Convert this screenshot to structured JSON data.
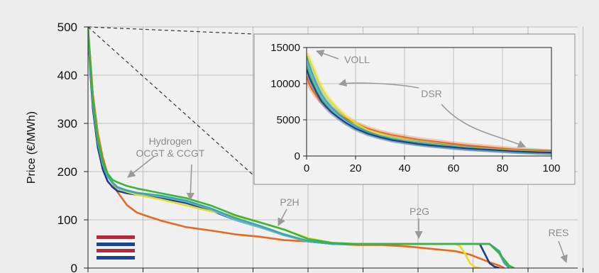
{
  "chart_data": [
    {
      "type": "line",
      "chart": "main",
      "ylabel": "Price (€/MWh)",
      "xlabel": "",
      "ylim": [
        0,
        500
      ],
      "xlim": [
        0,
        100
      ],
      "yticks": [
        0,
        100,
        200,
        300,
        400,
        500
      ],
      "ytick_labels": [
        "0",
        "100",
        "200",
        "300",
        "400",
        "500"
      ],
      "grid": true,
      "annotations": [
        {
          "id": "hydrogen",
          "lines": [
            "Hydrogen",
            "OCGT & CCGT"
          ],
          "x": 14,
          "y": 200
        },
        {
          "id": "p2h",
          "lines": [
            "P2H"
          ],
          "x": 37,
          "y": 95
        },
        {
          "id": "p2g",
          "lines": [
            "P2G"
          ],
          "x": 60,
          "y": 45
        },
        {
          "id": "res",
          "lines": [
            "RES"
          ],
          "x": 88,
          "y": 3
        }
      ],
      "legend": {
        "type": "flags",
        "placement": "bottom-left",
        "flags": [
          {
            "name": "",
            "colors": [
              "#b8283a",
              "#ffffff",
              "#1d4494"
            ]
          },
          {
            "name": "",
            "colors": [
              "#b8283a",
              "#ffffff",
              "#1d4494"
            ]
          }
        ]
      },
      "series": [
        {
          "color": "#e8681e",
          "x": [
            0,
            0.5,
            1,
            2,
            3,
            4,
            5,
            6,
            8,
            10,
            12,
            15,
            20,
            25,
            30,
            35,
            40,
            45,
            50,
            55,
            60,
            65,
            70,
            75,
            78,
            80,
            82,
            84,
            85
          ],
          "y": [
            500,
            430,
            360,
            280,
            230,
            195,
            175,
            158,
            130,
            115,
            108,
            98,
            85,
            78,
            70,
            65,
            58,
            55,
            50,
            48,
            48,
            45,
            40,
            35,
            28,
            20,
            12,
            5,
            0
          ]
        },
        {
          "color": "#1d3e8f",
          "x": [
            0,
            0.5,
            1,
            2,
            3,
            4,
            5,
            6,
            8,
            10,
            15,
            20,
            25,
            30,
            35,
            40,
            45,
            50,
            55,
            60,
            65,
            70,
            75,
            80,
            81,
            82,
            83,
            84
          ],
          "y": [
            500,
            400,
            330,
            250,
            205,
            180,
            168,
            160,
            155,
            152,
            145,
            135,
            120,
            100,
            85,
            70,
            55,
            50,
            50,
            50,
            50,
            50,
            50,
            50,
            30,
            10,
            3,
            0
          ]
        },
        {
          "color": "#e6dc28",
          "x": [
            0,
            0.5,
            1,
            2,
            3,
            4,
            5,
            6,
            8,
            10,
            15,
            20,
            25,
            30,
            35,
            40,
            45,
            50,
            55,
            60,
            65,
            70,
            75,
            76,
            77,
            78,
            79,
            80
          ],
          "y": [
            500,
            420,
            350,
            270,
            220,
            190,
            175,
            165,
            158,
            152,
            142,
            130,
            118,
            108,
            95,
            80,
            62,
            52,
            50,
            50,
            50,
            50,
            50,
            45,
            30,
            10,
            2,
            0
          ]
        },
        {
          "color": "#6fb0d9",
          "x": [
            0,
            0.5,
            1,
            2,
            3,
            4,
            5,
            6,
            8,
            10,
            15,
            20,
            25,
            30,
            35,
            40,
            45,
            50,
            55,
            60,
            65,
            70,
            75,
            80,
            82,
            84,
            85,
            86
          ],
          "y": [
            500,
            410,
            340,
            260,
            215,
            190,
            176,
            166,
            160,
            155,
            148,
            138,
            122,
            100,
            85,
            68,
            55,
            50,
            50,
            50,
            50,
            50,
            50,
            50,
            50,
            30,
            10,
            0
          ]
        },
        {
          "color": "#3aa9a3",
          "x": [
            0,
            0.5,
            1,
            2,
            3,
            4,
            5,
            6,
            8,
            10,
            15,
            20,
            25,
            30,
            35,
            40,
            45,
            50,
            55,
            60,
            65,
            70,
            75,
            80,
            82,
            84,
            85,
            86
          ],
          "y": [
            500,
            415,
            345,
            262,
            216,
            192,
            178,
            168,
            161,
            156,
            150,
            140,
            124,
            104,
            88,
            70,
            56,
            50,
            50,
            50,
            50,
            50,
            50,
            50,
            50,
            35,
            12,
            0
          ]
        },
        {
          "color": "#3bb43c",
          "x": [
            0,
            0.5,
            1,
            2,
            3,
            4,
            5,
            6,
            8,
            10,
            15,
            20,
            25,
            30,
            35,
            40,
            45,
            50,
            55,
            60,
            65,
            70,
            75,
            80,
            82,
            84,
            86,
            87
          ],
          "y": [
            500,
            420,
            350,
            268,
            222,
            196,
            183,
            178,
            170,
            165,
            155,
            145,
            130,
            110,
            95,
            80,
            60,
            52,
            50,
            50,
            50,
            50,
            50,
            50,
            50,
            30,
            5,
            0
          ]
        }
      ]
    },
    {
      "type": "line",
      "chart": "inset",
      "xlim": [
        0,
        100
      ],
      "ylim": [
        0,
        15000
      ],
      "xticks": [
        0,
        20,
        40,
        60,
        80,
        100
      ],
      "xtick_labels": [
        "0",
        "20",
        "40",
        "60",
        "80",
        "100"
      ],
      "yticks": [
        0,
        5000,
        10000,
        15000
      ],
      "ytick_labels": [
        "0",
        "5000",
        "10000",
        "15000"
      ],
      "grid": true,
      "annotations": [
        {
          "id": "voll",
          "lines": [
            "VOLL"
          ],
          "x": 12,
          "y": 13500
        },
        {
          "id": "dsr",
          "lines": [
            "DSR"
          ],
          "x": 42,
          "y": 8500
        }
      ],
      "series": [
        {
          "color": "#e8681e",
          "x": [
            0,
            1,
            2,
            4,
            6,
            8,
            10,
            13,
            16,
            20,
            25,
            30,
            35,
            40,
            45,
            50,
            55,
            60,
            65,
            70,
            75,
            80,
            85,
            90,
            95,
            100
          ],
          "y": [
            11000,
            10000,
            9300,
            8300,
            7600,
            7000,
            6500,
            5800,
            5200,
            4500,
            3800,
            3300,
            2900,
            2600,
            2300,
            2100,
            1900,
            1700,
            1500,
            1350,
            1200,
            1050,
            900,
            800,
            700,
            600
          ]
        },
        {
          "color": "#3bb43c",
          "x": [
            0,
            1,
            2,
            4,
            6,
            8,
            10,
            13,
            16,
            20,
            25,
            30,
            35,
            40,
            45,
            50,
            55,
            60,
            65,
            70,
            75,
            80,
            85,
            90,
            95,
            100
          ],
          "y": [
            12500,
            11500,
            10500,
            9000,
            7800,
            7000,
            6300,
            5500,
            4700,
            3900,
            3200,
            2700,
            2300,
            2000,
            1750,
            1550,
            1400,
            1250,
            1100,
            1000,
            900,
            800,
            700,
            650,
            600,
            550
          ]
        },
        {
          "color": "#e6dc28",
          "x": [
            0,
            1,
            2,
            4,
            6,
            8,
            10,
            13,
            16,
            20,
            25,
            30,
            35,
            40,
            45,
            50,
            55,
            60,
            65,
            70,
            75,
            80,
            85,
            90,
            95,
            100
          ],
          "y": [
            14200,
            13500,
            12700,
            11000,
            9500,
            8400,
            7500,
            6400,
            5500,
            4500,
            3600,
            3000,
            2500,
            2200,
            1900,
            1700,
            1500,
            1350,
            1200,
            1050,
            950,
            850,
            750,
            650,
            600,
            550
          ]
        },
        {
          "color": "#6fb0d9",
          "x": [
            0,
            1,
            2,
            4,
            6,
            8,
            10,
            13,
            16,
            20,
            25,
            30,
            35,
            40,
            45,
            50,
            55,
            60,
            65,
            70,
            75,
            80,
            85,
            90,
            95,
            100
          ],
          "y": [
            13000,
            12000,
            11000,
            9500,
            8200,
            7300,
            6500,
            5600,
            4800,
            4000,
            3200,
            2700,
            2300,
            2000,
            1750,
            1550,
            1350,
            1200,
            1050,
            950,
            850,
            750,
            650,
            600,
            550,
            500
          ]
        },
        {
          "color": "#3aa9a3",
          "x": [
            0,
            1,
            2,
            4,
            6,
            8,
            10,
            13,
            16,
            20,
            25,
            30,
            35,
            40,
            45,
            50,
            55,
            60,
            65,
            70,
            75,
            80,
            85,
            90,
            95,
            100
          ],
          "y": [
            13800,
            12700,
            11700,
            10000,
            8600,
            7600,
            6800,
            5800,
            5000,
            4100,
            3300,
            2800,
            2400,
            2100,
            1850,
            1650,
            1450,
            1300,
            1150,
            1000,
            900,
            800,
            700,
            620,
            560,
            500
          ]
        },
        {
          "color": "#1d3e8f",
          "x": [
            0,
            1,
            2,
            4,
            6,
            8,
            10,
            13,
            16,
            20,
            25,
            30,
            35,
            40,
            45,
            50,
            55,
            60,
            65,
            70,
            75,
            80,
            85,
            90,
            95,
            100
          ],
          "y": [
            12000,
            11000,
            10200,
            8800,
            7600,
            6800,
            6100,
            5300,
            4600,
            3800,
            3100,
            2600,
            2200,
            1950,
            1700,
            1500,
            1350,
            1200,
            1050,
            950,
            850,
            750,
            650,
            580,
            520,
            480
          ]
        }
      ]
    }
  ]
}
